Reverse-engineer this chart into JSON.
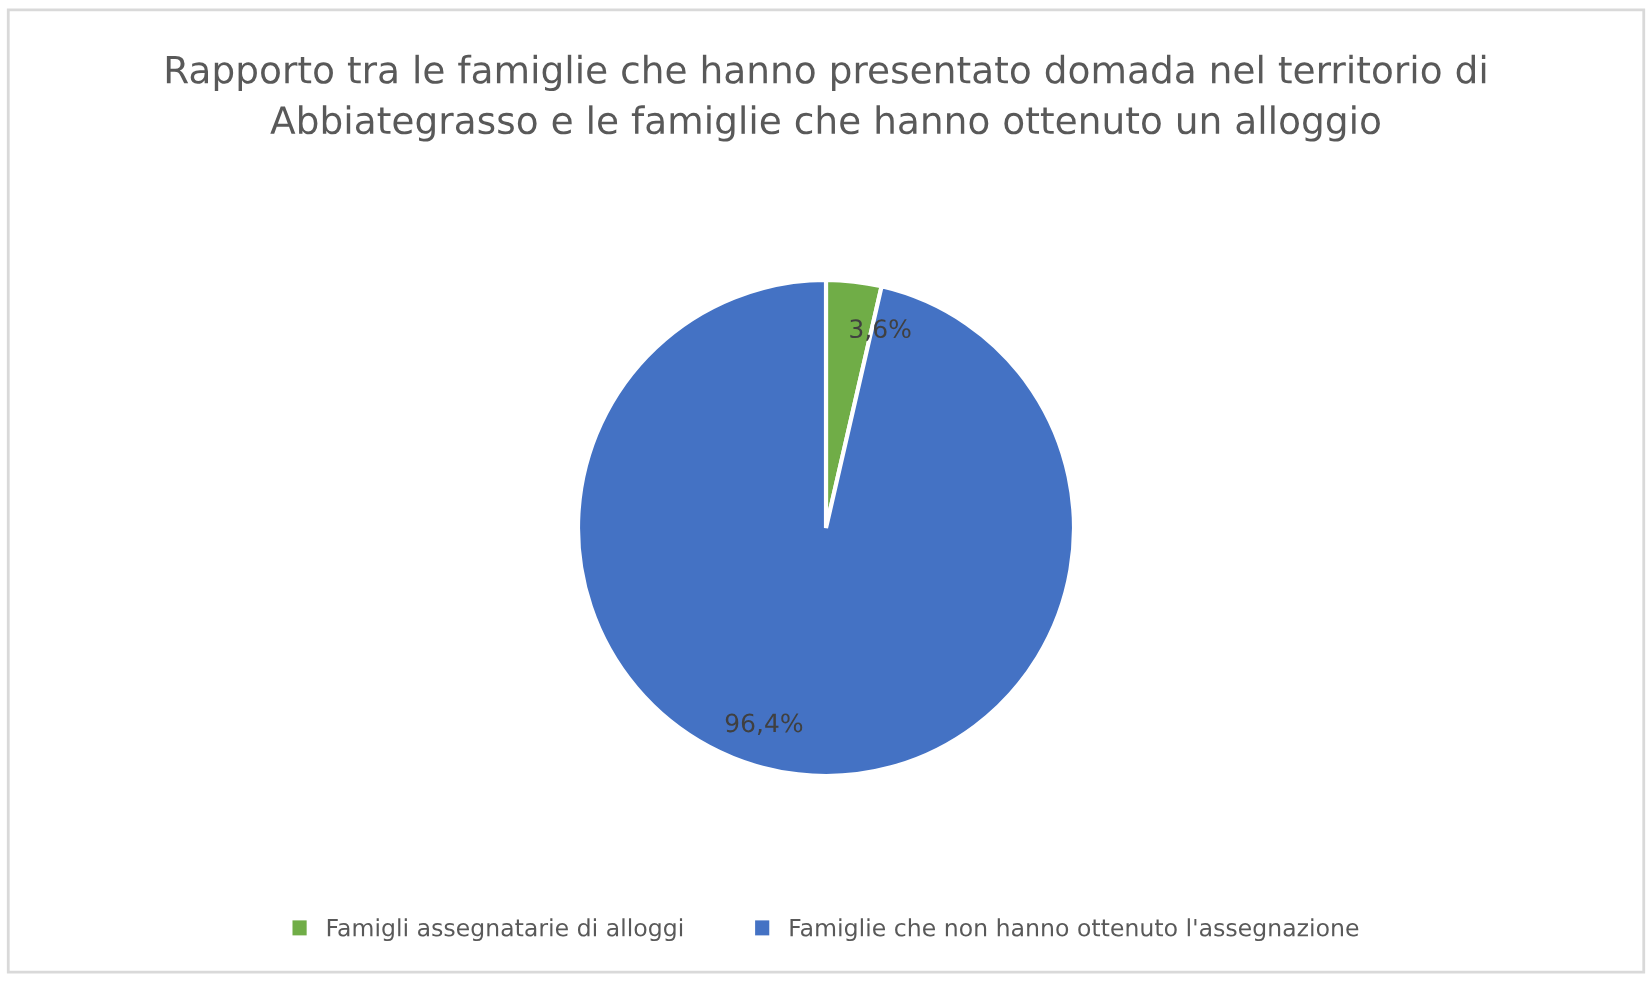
{
  "chart_data": {
    "type": "pie",
    "title": "Rapporto tra le famiglie che hanno presentato domada nel territorio di\nAbbiategrasso e le famiglie che hanno ottenuto un alloggio",
    "categories": [
      "Famigli assegnatarie di alloggi",
      "Famiglie che non hanno ottenuto l'assegnazione"
    ],
    "values": [
      3.6,
      96.4
    ],
    "value_labels": [
      "3,6%",
      "96,4%"
    ],
    "colors": [
      "#70ad47",
      "#4472c4"
    ],
    "legend": "bottom"
  }
}
